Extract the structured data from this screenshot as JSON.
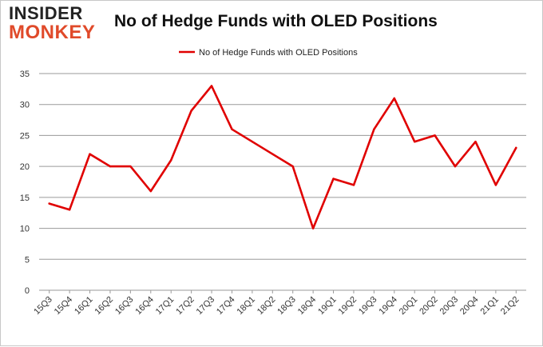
{
  "logo": {
    "line1": "INSIDER",
    "line2": "MONKEY"
  },
  "chart_data": {
    "type": "line",
    "title": "No of Hedge Funds with OLED Positions",
    "xlabel": "",
    "ylabel": "",
    "ylim": [
      0,
      35
    ],
    "yticks": [
      0,
      5,
      10,
      15,
      20,
      25,
      30,
      35
    ],
    "grid": true,
    "legend_position": "top-center",
    "categories": [
      "15Q3",
      "15Q4",
      "16Q1",
      "16Q2",
      "16Q3",
      "16Q4",
      "17Q1",
      "17Q2",
      "17Q3",
      "17Q4",
      "18Q1",
      "18Q2",
      "18Q3",
      "18Q4",
      "19Q1",
      "19Q2",
      "19Q3",
      "19Q4",
      "20Q1",
      "20Q2",
      "20Q3",
      "20Q4",
      "21Q1",
      "21Q2"
    ],
    "series": [
      {
        "name": "No of Hedge Funds with OLED Positions",
        "color": "#e00000",
        "values": [
          14,
          13,
          22,
          20,
          20,
          16,
          21,
          29,
          33,
          26,
          24,
          22,
          20,
          10,
          18,
          17,
          26,
          31,
          24,
          25,
          20,
          24,
          17,
          23
        ]
      }
    ]
  }
}
